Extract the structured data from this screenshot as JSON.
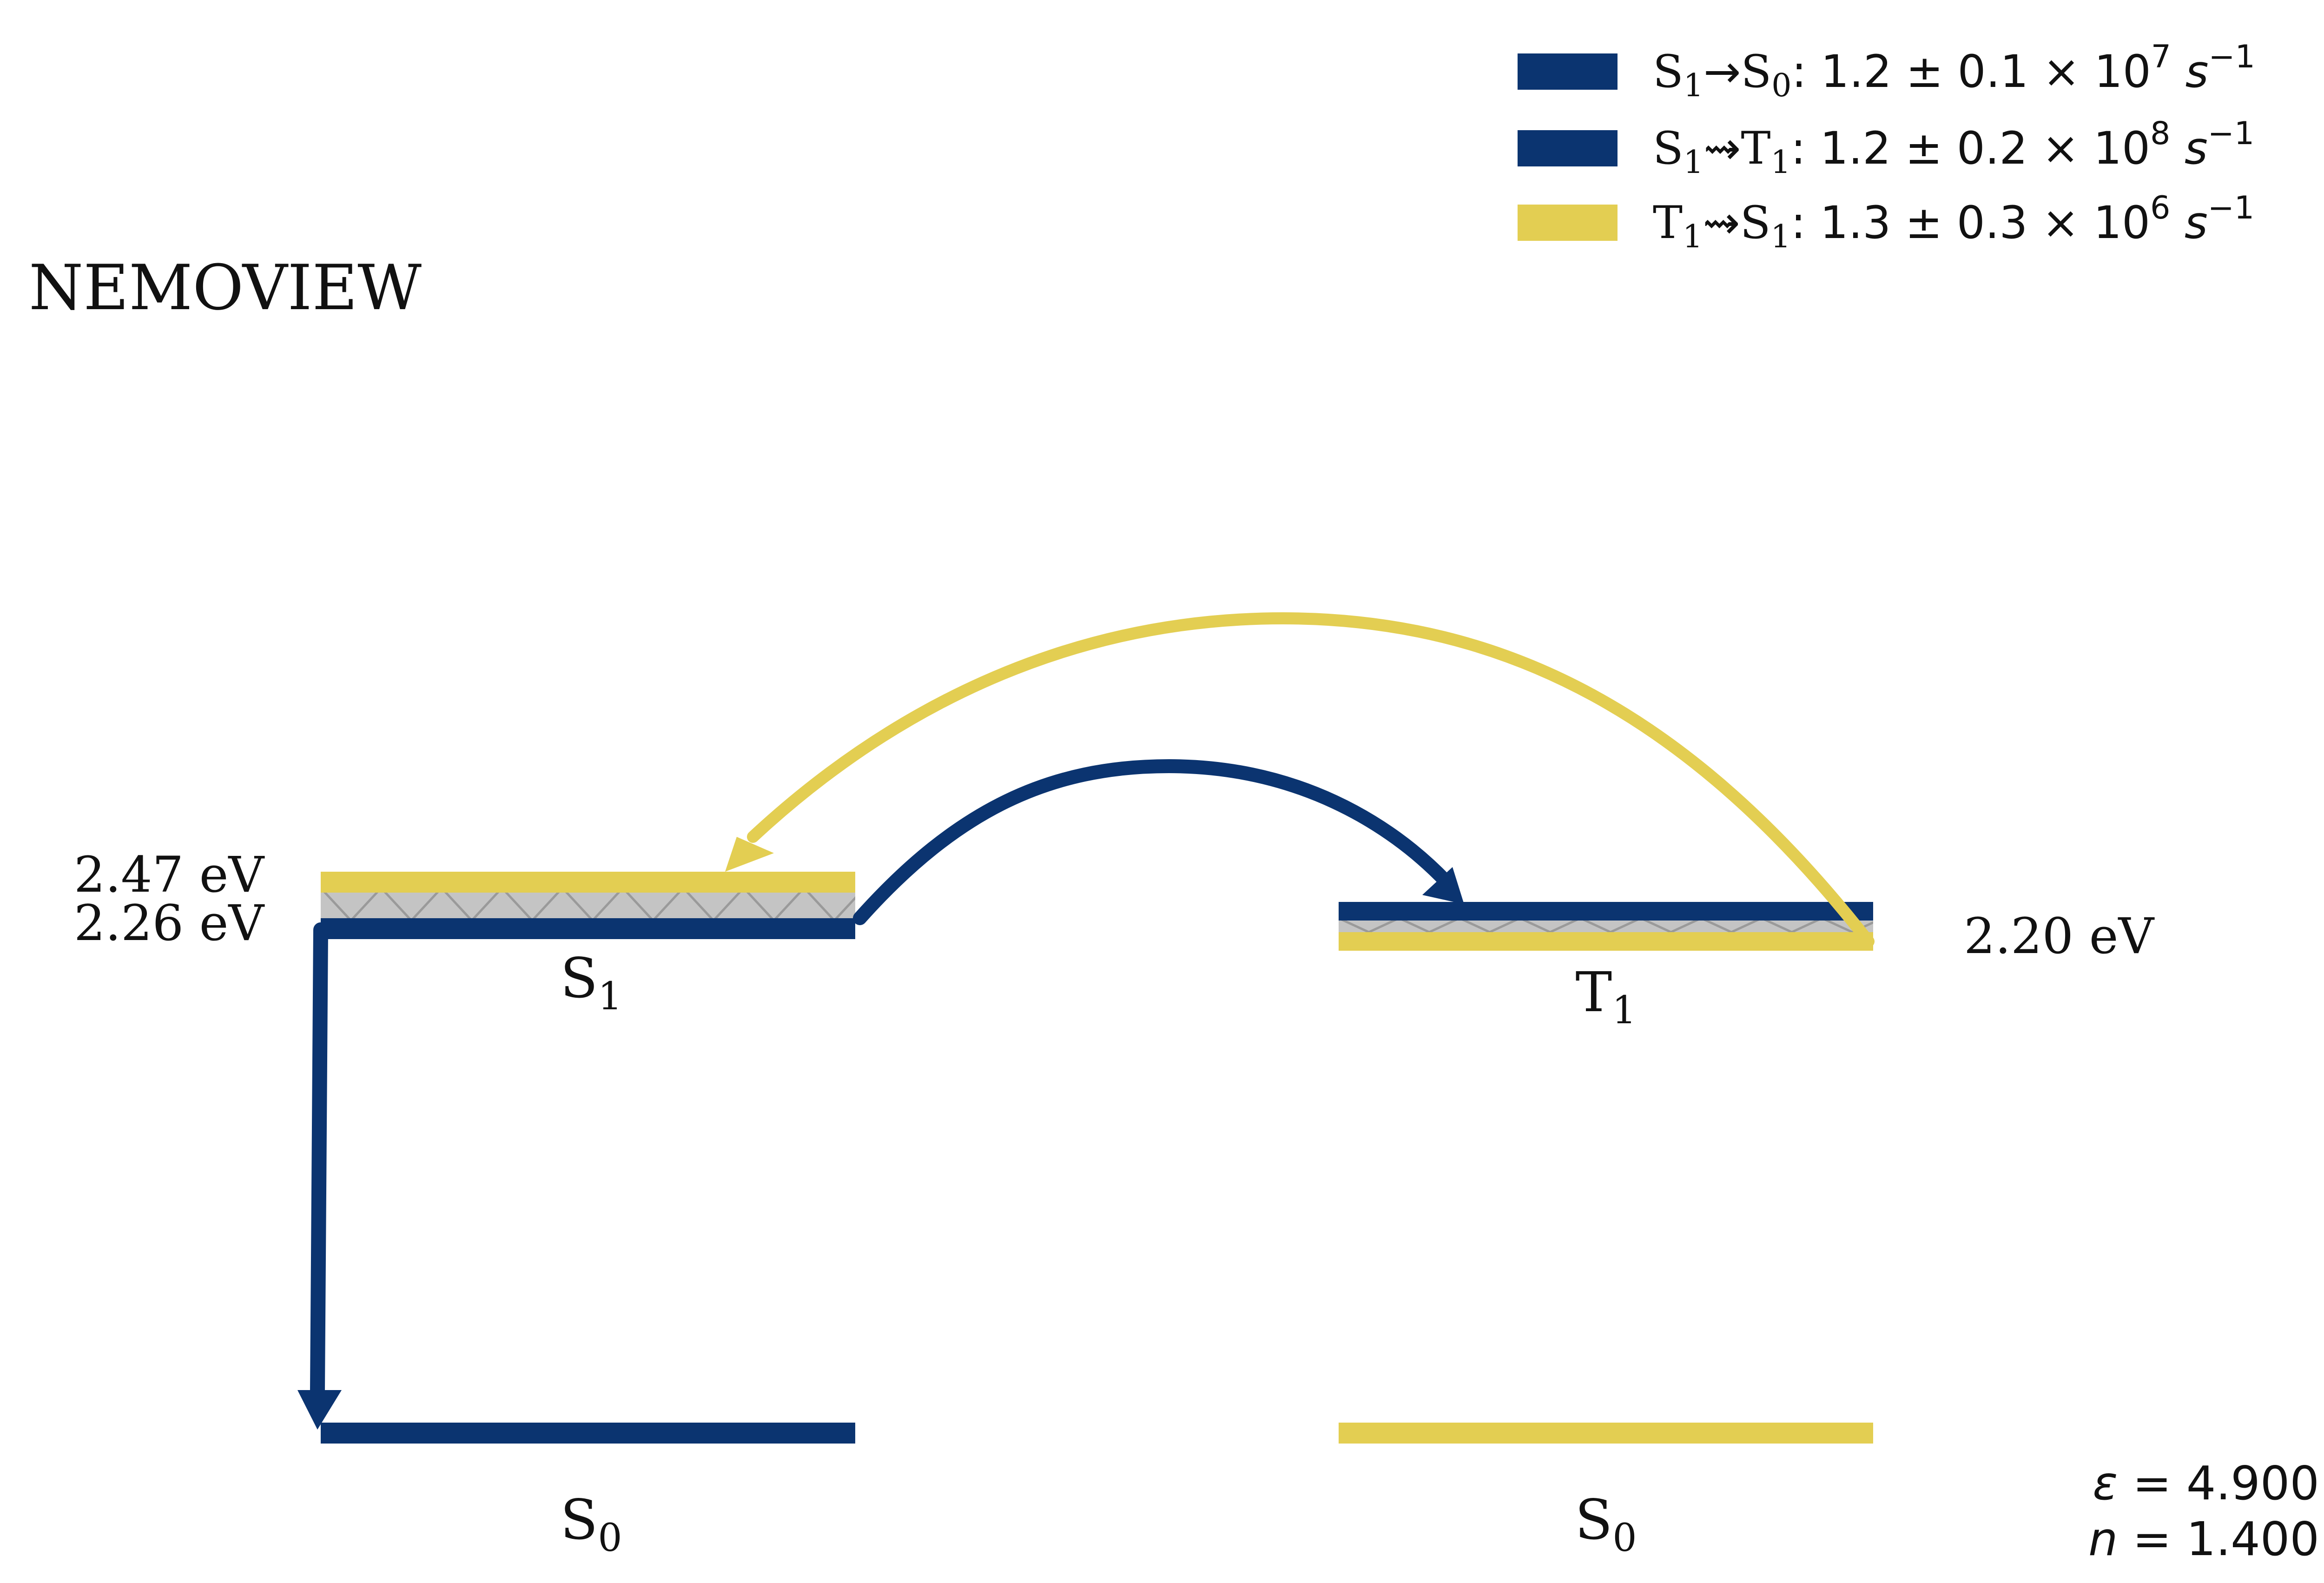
{
  "title": "NEMOVIEW",
  "colors": {
    "blue": "#0b3470",
    "yellow": "#e3ce52",
    "gap_gray": "#c4c4c4",
    "hatch_gray": "#9a9a9a",
    "text": "#111111"
  },
  "levels": {
    "s1": {
      "label_main": "S",
      "label_sub": "1",
      "energy_upper": "2.47 eV",
      "energy_lower": "2.26 eV"
    },
    "t1": {
      "label_main": "T",
      "label_sub": "1",
      "energy": "2.20 eV"
    },
    "s0_left": {
      "label_main": "S",
      "label_sub": "0"
    },
    "s0_right": {
      "label_main": "S",
      "label_sub": "0"
    }
  },
  "legend": [
    {
      "from_main": "S",
      "from_sub": "1",
      "arrow": "→",
      "to_main": "S",
      "to_sub": "0",
      "rate": "1.2 ± 0.1 × 10",
      "exp": "7",
      "unit": "s",
      "unit_exp": "−1",
      "color": "#0b3470"
    },
    {
      "from_main": "S",
      "from_sub": "1",
      "arrow": "⇝",
      "to_main": "T",
      "to_sub": "1",
      "rate": "1.2 ± 0.2 × 10",
      "exp": "8",
      "unit": "s",
      "unit_exp": "−1",
      "color": "#0b3470"
    },
    {
      "from_main": "T",
      "from_sub": "1",
      "arrow": "⇝",
      "to_main": "S",
      "to_sub": "1",
      "rate": "1.3 ± 0.3 × 10",
      "exp": "6",
      "unit": "s",
      "unit_exp": "−1",
      "color": "#e3ce52"
    }
  ],
  "params": {
    "epsilon_symbol": "ε",
    "epsilon_value": " = 4.900",
    "n_symbol": "n",
    "n_value": " = 1.400"
  }
}
